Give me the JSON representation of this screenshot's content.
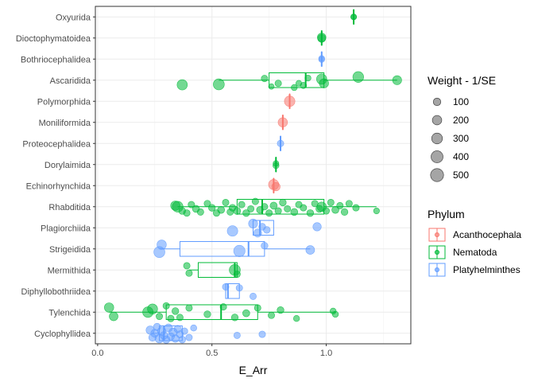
{
  "chart_data": {
    "type": "boxplot-jitter",
    "xlabel": "E_Arr",
    "ylabel": "",
    "xlim": [
      -0.01,
      1.37
    ],
    "x_ticks": [
      0.0,
      0.5,
      1.0
    ],
    "x_tick_labels": [
      "0.0",
      "0.5",
      "1.0"
    ],
    "grid": true,
    "categories": [
      "Oxyurida",
      "Dioctophymatoidea",
      "Bothriocephalidea",
      "Ascaridida",
      "Polymorphida",
      "Moniliformida",
      "Proteocephalidea",
      "Dorylaimida",
      "Echinorhynchida",
      "Rhabditida",
      "Plagiorchiida",
      "Strigeidida",
      "Mermithida",
      "Diphyllobothriidea",
      "Tylenchida",
      "Cyclophyllidea"
    ],
    "legend_size": {
      "title": "Weight - 1/SE",
      "position": "right",
      "values": [
        100,
        200,
        300,
        400,
        500
      ],
      "labels": [
        "100",
        "200",
        "300",
        "400",
        "500"
      ]
    },
    "legend_color": {
      "title": "Phylum",
      "position": "right",
      "entries": [
        {
          "name": "Acanthocephala",
          "color": "#F8766D"
        },
        {
          "name": "Nematoda",
          "color": "#00BA38"
        },
        {
          "name": "Platyhelminthes",
          "color": "#619CFF"
        }
      ]
    },
    "groups": [
      {
        "name": "Oxyurida",
        "phylum": "Nematoda",
        "box": {
          "min": 1.12,
          "q1": 1.12,
          "median": 1.12,
          "q3": 1.12,
          "max": 1.12
        },
        "points": [
          [
            1.12,
            25,
            0
          ],
          [
            1.12,
            40,
            0
          ]
        ]
      },
      {
        "name": "Dioctophymatoidea",
        "phylum": "Nematoda",
        "box": {
          "min": 0.98,
          "q1": 0.98,
          "median": 0.98,
          "q3": 0.98,
          "max": 0.98
        },
        "points": [
          [
            0.98,
            120,
            0.02
          ],
          [
            0.98,
            150,
            -0.03
          ]
        ]
      },
      {
        "name": "Bothriocephalidea",
        "phylum": "Platyhelminthes",
        "box": {
          "min": 0.98,
          "q1": 0.98,
          "median": 0.98,
          "q3": 0.98,
          "max": 0.98
        },
        "points": [
          [
            0.98,
            40,
            0.02
          ],
          [
            0.98,
            40,
            -0.03
          ]
        ]
      },
      {
        "name": "Ascaridida",
        "phylum": "Nematoda",
        "box": {
          "min": 0.53,
          "q1": 0.75,
          "median": 0.91,
          "q3": 0.99,
          "max": 1.31
        },
        "points": [
          [
            0.37,
            260,
            0.22
          ],
          [
            0.53,
            320,
            0.2
          ],
          [
            0.73,
            60,
            -0.08
          ],
          [
            0.76,
            30,
            0.3
          ],
          [
            0.79,
            60,
            0.15
          ],
          [
            0.86,
            45,
            0.35
          ],
          [
            0.88,
            40,
            0.15
          ],
          [
            0.9,
            50,
            0.25
          ],
          [
            0.92,
            45,
            -0.1
          ],
          [
            0.98,
            260,
            -0.05
          ],
          [
            0.99,
            190,
            0.15
          ],
          [
            1.14,
            300,
            -0.15
          ],
          [
            1.31,
            180,
            0.0
          ]
        ]
      },
      {
        "name": "Polymorphida",
        "phylum": "Acanthocephala",
        "box": {
          "min": 0.84,
          "q1": 0.84,
          "median": 0.84,
          "q3": 0.84,
          "max": 0.84
        },
        "points": [
          [
            0.84,
            280,
            0.0
          ]
        ]
      },
      {
        "name": "Moniliformida",
        "phylum": "Acanthocephala",
        "box": {
          "min": 0.81,
          "q1": 0.81,
          "median": 0.81,
          "q3": 0.81,
          "max": 0.81
        },
        "points": [
          [
            0.81,
            200,
            0.0
          ]
        ]
      },
      {
        "name": "Proteocephalidea",
        "phylum": "Platyhelminthes",
        "box": {
          "min": 0.8,
          "q1": 0.8,
          "median": 0.8,
          "q3": 0.8,
          "max": 0.8
        },
        "points": [
          [
            0.8,
            60,
            0.0
          ]
        ]
      },
      {
        "name": "Dorylaimida",
        "phylum": "Nematoda",
        "box": {
          "min": 0.78,
          "q1": 0.78,
          "median": 0.78,
          "q3": 0.78,
          "max": 0.78
        },
        "points": [
          [
            0.78,
            45,
            0.05
          ],
          [
            0.78,
            35,
            -0.05
          ]
        ]
      },
      {
        "name": "Echinorhynchida",
        "phylum": "Acanthocephala",
        "box": {
          "min": 0.77,
          "q1": 0.77,
          "median": 0.77,
          "q3": 0.77,
          "max": 0.77
        },
        "points": [
          [
            0.77,
            260,
            -0.05
          ],
          [
            0.78,
            140,
            0.05
          ]
        ]
      },
      {
        "name": "Rhabditida",
        "phylum": "Nematoda",
        "box": {
          "min": 0.35,
          "q1": 0.61,
          "median": 0.72,
          "q3": 0.99,
          "max": 1.22
        },
        "points": [
          [
            0.34,
            200,
            -0.05
          ],
          [
            0.35,
            300,
            0.0
          ],
          [
            0.37,
            70,
            0.2
          ],
          [
            0.39,
            60,
            0.3
          ],
          [
            0.41,
            60,
            -0.1
          ],
          [
            0.43,
            80,
            0.1
          ],
          [
            0.45,
            60,
            0.25
          ],
          [
            0.48,
            60,
            -0.15
          ],
          [
            0.5,
            70,
            0.05
          ],
          [
            0.52,
            60,
            0.3
          ],
          [
            0.54,
            80,
            0.15
          ],
          [
            0.56,
            60,
            -0.2
          ],
          [
            0.58,
            60,
            0.25
          ],
          [
            0.59,
            70,
            0.05
          ],
          [
            0.61,
            80,
            0.2
          ],
          [
            0.63,
            60,
            -0.1
          ],
          [
            0.65,
            70,
            0.3
          ],
          [
            0.67,
            60,
            0.1
          ],
          [
            0.69,
            60,
            -0.25
          ],
          [
            0.71,
            70,
            0.15
          ],
          [
            0.73,
            60,
            0.0
          ],
          [
            0.75,
            60,
            0.3
          ],
          [
            0.77,
            80,
            -0.05
          ],
          [
            0.79,
            60,
            0.2
          ],
          [
            0.81,
            70,
            -0.2
          ],
          [
            0.83,
            60,
            0.1
          ],
          [
            0.86,
            80,
            0.25
          ],
          [
            0.88,
            60,
            -0.1
          ],
          [
            0.9,
            60,
            0.05
          ],
          [
            0.93,
            70,
            0.3
          ],
          [
            0.95,
            60,
            -0.15
          ],
          [
            0.97,
            80,
            0.1
          ],
          [
            0.98,
            200,
            0.0
          ],
          [
            1.0,
            60,
            0.2
          ],
          [
            1.02,
            60,
            -0.2
          ],
          [
            1.04,
            80,
            0.15
          ],
          [
            1.06,
            60,
            -0.05
          ],
          [
            1.08,
            70,
            0.25
          ],
          [
            1.1,
            60,
            -0.15
          ],
          [
            1.13,
            60,
            0.05
          ],
          [
            1.22,
            40,
            0.2
          ]
        ]
      },
      {
        "name": "Plagiorchiida",
        "phylum": "Platyhelminthes",
        "box": {
          "min": 0.68,
          "q1": 0.68,
          "median": 0.71,
          "q3": 0.77,
          "max": 0.77
        },
        "points": [
          [
            0.59,
            280,
            0.15
          ],
          [
            0.68,
            180,
            -0.2
          ],
          [
            0.7,
            120,
            0.25
          ],
          [
            0.72,
            70,
            -0.05
          ],
          [
            0.74,
            70,
            0.1
          ],
          [
            0.96,
            140,
            -0.05
          ]
        ]
      },
      {
        "name": "Strigeidida",
        "phylum": "Platyhelminthes",
        "box": {
          "min": 0.27,
          "q1": 0.36,
          "median": 0.66,
          "q3": 0.73,
          "max": 0.93
        },
        "points": [
          [
            0.27,
            320,
            0.15
          ],
          [
            0.28,
            200,
            -0.2
          ],
          [
            0.62,
            350,
            0.1
          ],
          [
            0.73,
            70,
            -0.15
          ],
          [
            0.93,
            160,
            0.05
          ]
        ]
      },
      {
        "name": "Mermithida",
        "phylum": "Nematoda",
        "box": {
          "min": 0.4,
          "q1": 0.44,
          "median": 0.6,
          "q3": 0.61,
          "max": 0.61
        },
        "points": [
          [
            0.39,
            60,
            -0.2
          ],
          [
            0.4,
            60,
            0.15
          ],
          [
            0.6,
            320,
            0.0
          ],
          [
            0.61,
            60,
            0.2
          ]
        ]
      },
      {
        "name": "Diphyllobothriidea",
        "phylum": "Platyhelminthes",
        "box": {
          "min": 0.56,
          "q1": 0.56,
          "median": 0.57,
          "q3": 0.62,
          "max": 0.62
        },
        "points": [
          [
            0.56,
            60,
            -0.2
          ],
          [
            0.62,
            60,
            -0.15
          ],
          [
            0.68,
            60,
            0.25
          ]
        ]
      },
      {
        "name": "Tylenchida",
        "phylum": "Nematoda",
        "box": {
          "min": 0.05,
          "q1": 0.3,
          "median": 0.54,
          "q3": 0.7,
          "max": 1.04
        },
        "points": [
          [
            0.05,
            200,
            -0.22
          ],
          [
            0.07,
            160,
            0.2
          ],
          [
            0.22,
            280,
            0.0
          ],
          [
            0.24,
            250,
            -0.15
          ],
          [
            0.27,
            60,
            0.2
          ],
          [
            0.3,
            60,
            -0.3
          ],
          [
            0.32,
            60,
            0.3
          ],
          [
            0.34,
            70,
            -0.05
          ],
          [
            0.36,
            60,
            0.25
          ],
          [
            0.4,
            60,
            -0.2
          ],
          [
            0.48,
            70,
            0.1
          ],
          [
            0.55,
            60,
            -0.25
          ],
          [
            0.6,
            70,
            0.25
          ],
          [
            0.65,
            80,
            0.05
          ],
          [
            0.7,
            60,
            -0.2
          ],
          [
            0.76,
            60,
            0.15
          ],
          [
            0.8,
            70,
            -0.1
          ],
          [
            0.87,
            45,
            0.3
          ],
          [
            1.03,
            45,
            -0.05
          ],
          [
            1.04,
            45,
            0.1
          ]
        ]
      },
      {
        "name": "Cyclophyllidea",
        "phylum": "Platyhelminthes",
        "box": {
          "min": 0.24,
          "q1": 0.27,
          "median": 0.29,
          "q3": 0.37,
          "max": 0.37
        },
        "points": [
          [
            0.23,
            140,
            -0.15
          ],
          [
            0.24,
            100,
            0.2
          ],
          [
            0.25,
            120,
            0.0
          ],
          [
            0.26,
            90,
            -0.3
          ],
          [
            0.27,
            160,
            0.25
          ],
          [
            0.28,
            140,
            -0.1
          ],
          [
            0.29,
            110,
            0.1
          ],
          [
            0.3,
            100,
            0.3
          ],
          [
            0.31,
            120,
            -0.25
          ],
          [
            0.32,
            90,
            0.15
          ],
          [
            0.33,
            140,
            -0.05
          ],
          [
            0.34,
            100,
            0.25
          ],
          [
            0.35,
            90,
            -0.2
          ],
          [
            0.36,
            80,
            0.05
          ],
          [
            0.37,
            70,
            0.3
          ],
          [
            0.38,
            60,
            -0.1
          ],
          [
            0.4,
            60,
            0.2
          ],
          [
            0.42,
            50,
            -0.25
          ],
          [
            0.61,
            60,
            0.1
          ],
          [
            0.72,
            60,
            0.05
          ]
        ]
      }
    ]
  }
}
